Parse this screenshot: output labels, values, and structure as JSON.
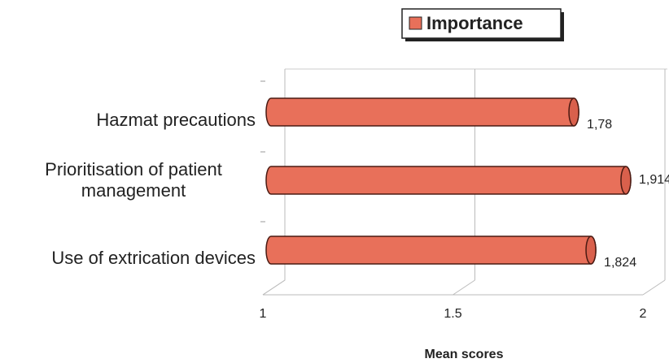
{
  "chart_data": {
    "type": "bar",
    "orientation": "horizontal",
    "x_label": "Mean scores",
    "categories": [
      "Hazmat precautions",
      "Prioritisation of patient management",
      "Use of extrication devices"
    ],
    "series": [
      {
        "name": "Importance",
        "color": "#e8705a",
        "values": [
          1.78,
          1.914,
          1.824
        ],
        "value_labels": [
          "1,78",
          "1,914",
          "1,824"
        ]
      }
    ],
    "xlim": [
      1,
      2
    ],
    "xticks": [
      1,
      1.5,
      2
    ],
    "grid": true,
    "legend": "top"
  }
}
